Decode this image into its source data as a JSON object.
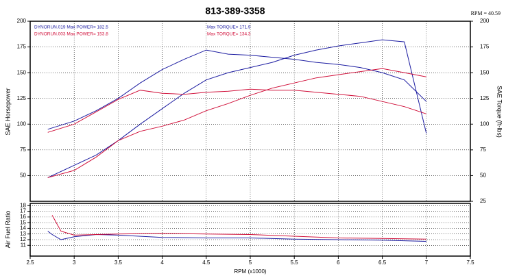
{
  "chart_data": [
    {
      "type": "line",
      "title": "813-389-3358",
      "annotation": "RPM = 40.59",
      "ylabel": "SAE Horsepower",
      "y2label": "SAE Torque (ft-lbs)",
      "xlim": [
        2.5,
        7.5
      ],
      "ylim": [
        25,
        200
      ],
      "yticks": [
        50,
        75,
        100,
        125,
        150,
        175,
        200
      ],
      "y2lim": [
        25,
        200
      ],
      "y2ticks": [
        25,
        50,
        75,
        100,
        125,
        150,
        175,
        200
      ],
      "grid": true,
      "x": [
        2.7,
        3.0,
        3.25,
        3.5,
        3.75,
        4.0,
        4.25,
        4.5,
        4.75,
        5.0,
        5.25,
        5.5,
        5.75,
        6.0,
        6.25,
        6.5,
        6.75,
        7.0
      ],
      "series": [
        {
          "name": "DYNORUN.019 Max POWER= 182.5",
          "color": "#1a1aa0",
          "values": [
            48,
            60,
            70,
            84,
            100,
            115,
            130,
            143,
            150,
            155,
            160,
            167,
            172,
            176,
            179,
            182,
            180,
            91
          ]
        },
        {
          "name": "Max TORQUE= 171.9",
          "color": "#1a1aa0",
          "axis": "y2",
          "values": [
            95,
            103,
            113,
            125,
            140,
            153,
            163,
            172,
            168,
            167,
            165,
            163,
            160,
            158,
            155,
            150,
            143,
            122
          ]
        },
        {
          "name": "DYNORUN.003 Max POWER= 153.8",
          "color": "#d0103a",
          "values": [
            48,
            55,
            68,
            84,
            93,
            98,
            104,
            113,
            120,
            128,
            135,
            140,
            145,
            148,
            151,
            154,
            150,
            146
          ]
        },
        {
          "name": "Max TORQUE= 134.3",
          "color": "#d0103a",
          "axis": "y2",
          "values": [
            92,
            100,
            112,
            124,
            133,
            130,
            129,
            131,
            132,
            134,
            133,
            133,
            131,
            129,
            127,
            122,
            117,
            110
          ]
        }
      ]
    },
    {
      "type": "line",
      "ylabel": "Air Fuel Ratio",
      "xlabel": "RPM (x1000)",
      "xlim": [
        2.5,
        7.5
      ],
      "xticks": [
        2.5,
        3.0,
        3.5,
        4.0,
        4.5,
        5.0,
        5.5,
        6.0,
        6.5,
        7.0,
        7.5
      ],
      "ylim": [
        9.1,
        18.4
      ],
      "yticks": [
        11,
        12,
        13,
        14,
        15,
        16,
        17,
        18
      ],
      "grid": true,
      "x": [
        2.7,
        2.75,
        2.85,
        3.0,
        3.25,
        3.5,
        4.0,
        4.5,
        5.0,
        5.5,
        6.0,
        6.5,
        7.0
      ],
      "series": [
        {
          "color": "#1a1aa0",
          "values": [
            13.5,
            12.9,
            12.0,
            12.5,
            12.9,
            12.8,
            12.4,
            12.3,
            12.3,
            12.1,
            12.0,
            11.9,
            11.7
          ]
        },
        {
          "color": "#d0103a",
          "values": [
            null,
            16.3,
            13.5,
            12.8,
            12.9,
            13.0,
            13.1,
            13.0,
            12.9,
            12.6,
            12.3,
            12.2,
            12.1
          ]
        }
      ]
    }
  ]
}
